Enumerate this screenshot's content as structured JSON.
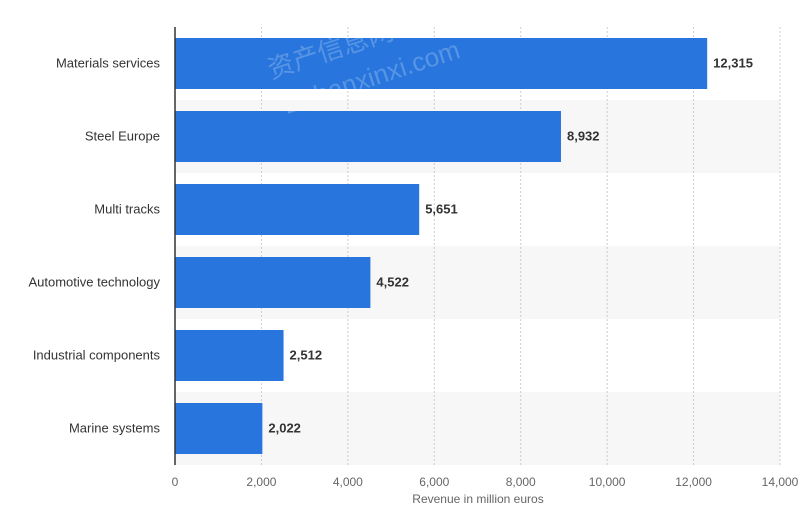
{
  "chart_data": {
    "type": "bar",
    "orientation": "horizontal",
    "categories": [
      "Materials services",
      "Steel Europe",
      "Multi tracks",
      "Automotive technology",
      "Industrial components",
      "Marine systems"
    ],
    "values": [
      12315,
      8932,
      5651,
      4522,
      2512,
      2022
    ],
    "value_labels": [
      "12,315",
      "8,932",
      "5,651",
      "4,522",
      "2,512",
      "2,022"
    ],
    "xlabel": "Revenue in million euros",
    "xlim": [
      0,
      14000
    ],
    "xticks": [
      0,
      2000,
      4000,
      6000,
      8000,
      10000,
      12000,
      14000
    ],
    "xtick_labels": [
      "0",
      "2,000",
      "4,000",
      "6,000",
      "8,000",
      "10,000",
      "12,000",
      "14,000"
    ],
    "grid": true,
    "colors": {
      "bar": "#2876dd",
      "band": "#f7f7f7",
      "grid": "#cccccc",
      "axis": "#333333"
    }
  },
  "watermark": {
    "text_cn": "资产信息网",
    "text_en": "zichanxinxi.com"
  }
}
